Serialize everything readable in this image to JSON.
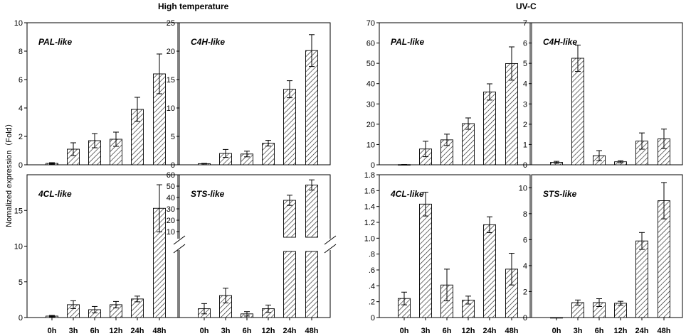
{
  "figure": {
    "group_titles": [
      "High temperature",
      "UV-C"
    ],
    "ylabel": "Nomalized expression（Fold）",
    "categories": [
      "0h",
      "3h",
      "6h",
      "12h",
      "24h",
      "48h"
    ]
  },
  "chart_data": [
    {
      "type": "bar",
      "group": "High temperature",
      "title": "PAL-like",
      "categories": [
        "0h",
        "3h",
        "6h",
        "12h",
        "24h",
        "48h"
      ],
      "values": [
        0.1,
        1.1,
        1.7,
        1.8,
        3.9,
        6.4
      ],
      "errors": [
        0.05,
        0.45,
        0.5,
        0.5,
        0.85,
        1.4
      ],
      "ylim": [
        0,
        10
      ],
      "yticks": [
        "0",
        "2",
        "4",
        "6",
        "8",
        "10"
      ]
    },
    {
      "type": "bar",
      "group": "High temperature",
      "title": "C4H-like",
      "categories": [
        "0h",
        "3h",
        "6h",
        "12h",
        "24h",
        "48h"
      ],
      "values": [
        0.2,
        2.0,
        1.9,
        3.8,
        13.3,
        20.1
      ],
      "errors": [
        0.05,
        0.7,
        0.5,
        0.5,
        1.5,
        2.8
      ],
      "ylim": [
        0,
        25
      ],
      "yticks": [
        "0",
        "5",
        "10",
        "15",
        "20",
        "25"
      ]
    },
    {
      "type": "bar",
      "group": "High temperature",
      "title": "4CL-like",
      "categories": [
        "0h",
        "3h",
        "6h",
        "12h",
        "24h",
        "48h"
      ],
      "values": [
        0.2,
        1.8,
        1.1,
        1.8,
        2.6,
        15.3
      ],
      "errors": [
        0.1,
        0.55,
        0.45,
        0.45,
        0.4,
        3.3
      ],
      "ylim": [
        0,
        20
      ],
      "yticks": [
        "0",
        "5",
        "10",
        "15"
      ]
    },
    {
      "type": "bar",
      "group": "High temperature",
      "title": "STS-like",
      "broken_axis": true,
      "categories": [
        "0h",
        "3h",
        "6h",
        "12h",
        "24h",
        "48h"
      ],
      "values": [
        0.6,
        1.5,
        0.25,
        0.6,
        37.5,
        51.0
      ],
      "errors": [
        0.35,
        0.5,
        0.15,
        0.25,
        4.5,
        4.5
      ],
      "lower_ylim": [
        0,
        4.5
      ],
      "upper_ylim": [
        5,
        60
      ],
      "yticks": [
        "10",
        "20",
        "30",
        "40",
        "50",
        "60"
      ]
    },
    {
      "type": "bar",
      "group": "UV-C",
      "title": "PAL-like",
      "categories": [
        "0h",
        "3h",
        "6h",
        "12h",
        "24h",
        "48h"
      ],
      "values": [
        0.1,
        7.8,
        12.3,
        20.3,
        35.9,
        49.9
      ],
      "errors": [
        0.05,
        3.8,
        2.8,
        2.8,
        4.0,
        8.2
      ],
      "ylim": [
        0,
        70
      ],
      "yticks": [
        "0",
        "10",
        "20",
        "30",
        "40",
        "50",
        "60",
        "70"
      ]
    },
    {
      "type": "bar",
      "group": "UV-C",
      "title": "C4H-like",
      "categories": [
        "0h",
        "3h",
        "6h",
        "12h",
        "24h",
        "48h"
      ],
      "values": [
        0.12,
        5.25,
        0.45,
        0.15,
        1.17,
        1.28
      ],
      "errors": [
        0.05,
        0.65,
        0.25,
        0.05,
        0.4,
        0.48
      ],
      "ylim": [
        0,
        7
      ],
      "yticks": [
        "0",
        "1",
        "2",
        "3",
        "4",
        "5",
        "6",
        "7"
      ]
    },
    {
      "type": "bar",
      "group": "UV-C",
      "title": "4CL-like",
      "categories": [
        "0h",
        "3h",
        "6h",
        "12h",
        "24h",
        "48h"
      ],
      "values": [
        0.24,
        1.43,
        0.41,
        0.22,
        1.17,
        0.61
      ],
      "errors": [
        0.08,
        0.15,
        0.2,
        0.05,
        0.1,
        0.2
      ],
      "ylim": [
        0,
        1.8
      ],
      "yticks": [
        "0",
        ".2",
        ".4",
        ".6",
        ".8",
        "1.0",
        "1.2",
        "1.4",
        "1.6",
        "1.8"
      ]
    },
    {
      "type": "bar",
      "group": "UV-C",
      "title": "STS-like",
      "categories": [
        "0h",
        "3h",
        "6h",
        "12h",
        "24h",
        "48h"
      ],
      "values": [
        0.0,
        1.15,
        1.15,
        1.1,
        5.9,
        9.0
      ],
      "errors": [
        0.0,
        0.2,
        0.3,
        0.15,
        0.65,
        1.4
      ],
      "ylim": [
        0,
        11
      ],
      "yticks": [
        "0",
        "2",
        "4",
        "6",
        "8",
        "10"
      ]
    }
  ]
}
